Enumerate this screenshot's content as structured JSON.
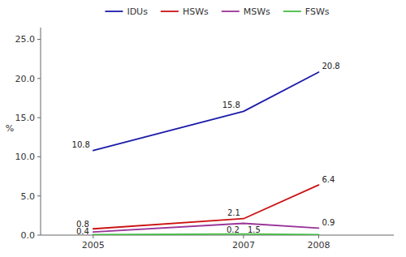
{
  "chart_data": {
    "type": "line",
    "ylabel": "%",
    "x": [
      2005,
      2007,
      2008
    ],
    "xlim": [
      2004.3,
      2009.0
    ],
    "xticks": [
      2005,
      2007,
      2008
    ],
    "ylim": [
      0.0,
      26.5
    ],
    "yticks": [
      {
        "value": 0.0,
        "label": "0.0"
      },
      {
        "value": 5.0,
        "label": "5.0"
      },
      {
        "value": 10.0,
        "label": "10.0"
      },
      {
        "value": 15.0,
        "label": "15.0"
      },
      {
        "value": 20.0,
        "label": "20.0"
      },
      {
        "value": 25.0,
        "label": "25.0"
      }
    ],
    "grid": false,
    "legend": "top",
    "data_labels": true,
    "series": [
      {
        "name": "IDUs",
        "color": "#1a1aaa",
        "values": [
          10.8,
          15.8,
          20.8
        ],
        "value_labels": [
          "10.8",
          "15.8",
          "20.8"
        ]
      },
      {
        "name": "HSWs",
        "color": "#cc1111",
        "values": [
          0.8,
          2.1,
          6.4
        ],
        "value_labels": [
          "0.8",
          "2.1",
          "6.4"
        ]
      },
      {
        "name": "MSWs",
        "color": "#993399",
        "values": [
          0.4,
          1.5,
          0.9
        ],
        "value_labels": [
          "0.4",
          "1.5",
          "0.9"
        ]
      },
      {
        "name": "FSWs",
        "color": "#44bb44",
        "values": [
          0.05,
          0.15,
          0.05
        ],
        "value_labels": [
          null,
          "0.2",
          null
        ]
      }
    ]
  }
}
